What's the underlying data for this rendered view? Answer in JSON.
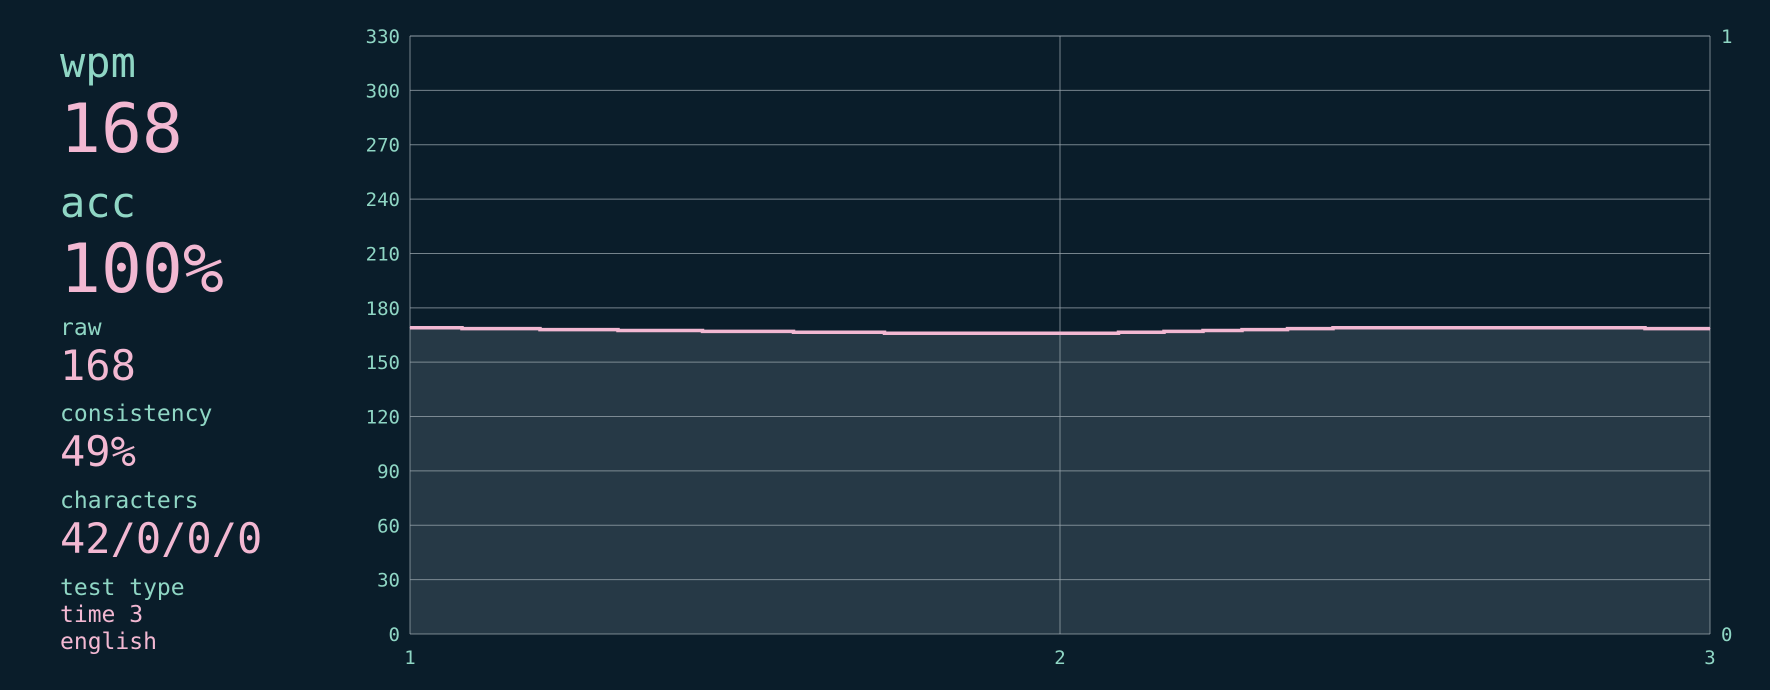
{
  "stats": {
    "wpm_label": "wpm",
    "wpm_value": "168",
    "acc_label": "acc",
    "acc_value": "100%",
    "raw_label": "raw",
    "raw_value": "168",
    "consistency_label": "consistency",
    "consistency_value": "49%",
    "characters_label": "characters",
    "characters_value": "42/0/0/0",
    "test_type_label": "test type",
    "test_type_mode": "time 3",
    "test_type_language": "english"
  },
  "colors": {
    "background": "#0a1d2a",
    "label": "#8fd6c4",
    "value": "#f2b8d2",
    "area_fill": "#263946",
    "grid": "#9aa6ae"
  },
  "chart_data": {
    "type": "line",
    "x_ticks": [
      "1",
      "2",
      "3"
    ],
    "y_ticks": [
      "0",
      "30",
      "60",
      "90",
      "120",
      "150",
      "180",
      "210",
      "240",
      "270",
      "300",
      "330"
    ],
    "y2_ticks": [
      "0",
      "1"
    ],
    "xlim": [
      1,
      3
    ],
    "ylim": [
      0,
      330
    ],
    "y2lim": [
      0,
      1
    ],
    "grid": true,
    "series": [
      {
        "filled": true,
        "x": [
          1.0,
          1.08,
          1.2,
          1.32,
          1.45,
          1.59,
          1.73,
          2.0,
          2.09,
          2.16,
          2.22,
          2.28,
          2.35,
          2.42,
          2.5,
          2.6,
          2.7,
          2.8,
          2.9,
          3.0
        ],
        "y": [
          169,
          168.5,
          168,
          167.5,
          167,
          166.5,
          166,
          166,
          166.5,
          167,
          167.5,
          168,
          168.5,
          169,
          169,
          169,
          169,
          169,
          168.5,
          168.5
        ]
      }
    ]
  }
}
